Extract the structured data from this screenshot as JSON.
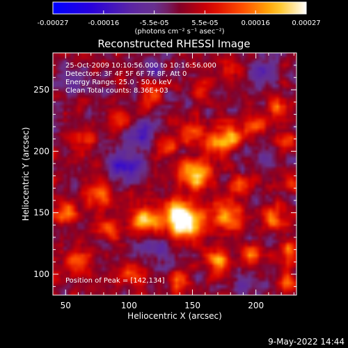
{
  "chart_data": {
    "type": "heatmap",
    "title": "Reconstructed RHESSI Image",
    "xlabel": "Heliocentric X (arcsec)",
    "ylabel": "Heliocentric Y (arcsec)",
    "xlim": [
      40,
      232
    ],
    "ylim": [
      83,
      280
    ],
    "x_ticks": [
      50,
      100,
      150,
      200
    ],
    "y_ticks": [
      100,
      150,
      200,
      250
    ],
    "colorbar": {
      "ticks": [
        "-0.00027",
        "-0.00016",
        "-5.5e-05",
        "5.5e-05",
        "0.00016",
        "0.00027"
      ],
      "label": "(photons cm⁻² s⁻¹ asec⁻²)",
      "range": [
        -0.00027,
        0.00027
      ]
    },
    "info_lines": [
      "25-Oct-2009 10:10:56.000 to 10:16:56.000",
      "Detectors: 3F 4F 5F 6F 7F 8F, Att 0",
      "Energy Range: 25.0 - 50.0 keV",
      "Clean    Total counts: 8.36E+03"
    ],
    "peak_text": "Position of Peak = [142,134]",
    "peak": [
      142,
      134
    ],
    "sources": [
      {
        "x": 145,
        "y": 140,
        "amp": 0.00027,
        "w": 9
      },
      {
        "x": 152,
        "y": 182,
        "amp": 0.00024,
        "w": 8
      },
      {
        "x": 137,
        "y": 150,
        "amp": 0.00021,
        "w": 8
      },
      {
        "x": 113,
        "y": 145,
        "amp": 0.0002,
        "w": 8
      },
      {
        "x": 176,
        "y": 148,
        "amp": 0.00018,
        "w": 9
      },
      {
        "x": 168,
        "y": 206,
        "amp": 0.00016,
        "w": 8
      },
      {
        "x": 183,
        "y": 212,
        "amp": 0.00017,
        "w": 6
      },
      {
        "x": 200,
        "y": 222,
        "amp": 0.00014,
        "w": 6
      },
      {
        "x": 217,
        "y": 235,
        "amp": 0.00015,
        "w": 6
      },
      {
        "x": 225,
        "y": 208,
        "amp": 0.00012,
        "w": 5
      },
      {
        "x": 214,
        "y": 146,
        "amp": 0.00015,
        "w": 7
      },
      {
        "x": 228,
        "y": 118,
        "amp": 0.00016,
        "w": 6
      },
      {
        "x": 226,
        "y": 94,
        "amp": 0.00014,
        "w": 6
      },
      {
        "x": 196,
        "y": 115,
        "amp": 0.00015,
        "w": 6
      },
      {
        "x": 170,
        "y": 110,
        "amp": 0.00017,
        "w": 7
      },
      {
        "x": 140,
        "y": 95,
        "amp": 0.00013,
        "w": 6
      },
      {
        "x": 102,
        "y": 100,
        "amp": 0.00013,
        "w": 6
      },
      {
        "x": 58,
        "y": 108,
        "amp": 0.00015,
        "w": 7
      },
      {
        "x": 52,
        "y": 150,
        "amp": 0.00015,
        "w": 7
      },
      {
        "x": 77,
        "y": 165,
        "amp": 0.00016,
        "w": 7
      },
      {
        "x": 83,
        "y": 138,
        "amp": 0.00013,
        "w": 6
      },
      {
        "x": 64,
        "y": 210,
        "amp": 0.00011,
        "w": 6
      },
      {
        "x": 92,
        "y": 226,
        "amp": 0.00012,
        "w": 6
      },
      {
        "x": 130,
        "y": 205,
        "amp": 0.00013,
        "w": 6
      },
      {
        "x": 150,
        "y": 216,
        "amp": 0.00014,
        "w": 6
      },
      {
        "x": 118,
        "y": 248,
        "amp": 0.00012,
        "w": 6
      },
      {
        "x": 157,
        "y": 250,
        "amp": 0.0001,
        "w": 6
      },
      {
        "x": 185,
        "y": 268,
        "amp": 0.00011,
        "w": 6
      },
      {
        "x": 190,
        "y": 172,
        "amp": 0.00012,
        "w": 6
      },
      {
        "x": 230,
        "y": 175,
        "amp": 0.0001,
        "w": 5
      },
      {
        "x": 96,
        "y": 190,
        "amp": -0.00016,
        "w": 9
      },
      {
        "x": 110,
        "y": 214,
        "amp": -0.00012,
        "w": 7
      },
      {
        "x": 205,
        "y": 262,
        "amp": -0.00012,
        "w": 8
      },
      {
        "x": 208,
        "y": 188,
        "amp": -8e-05,
        "w": 7
      },
      {
        "x": 125,
        "y": 122,
        "amp": -7e-05,
        "w": 7
      },
      {
        "x": 190,
        "y": 92,
        "amp": -7e-05,
        "w": 7
      },
      {
        "x": 55,
        "y": 258,
        "amp": -6e-05,
        "w": 7
      },
      {
        "x": 118,
        "y": 270,
        "amp": -7e-05,
        "w": 7
      }
    ],
    "noise_amp": 5e-05
  },
  "footer_date": "9-May-2022 14:44"
}
